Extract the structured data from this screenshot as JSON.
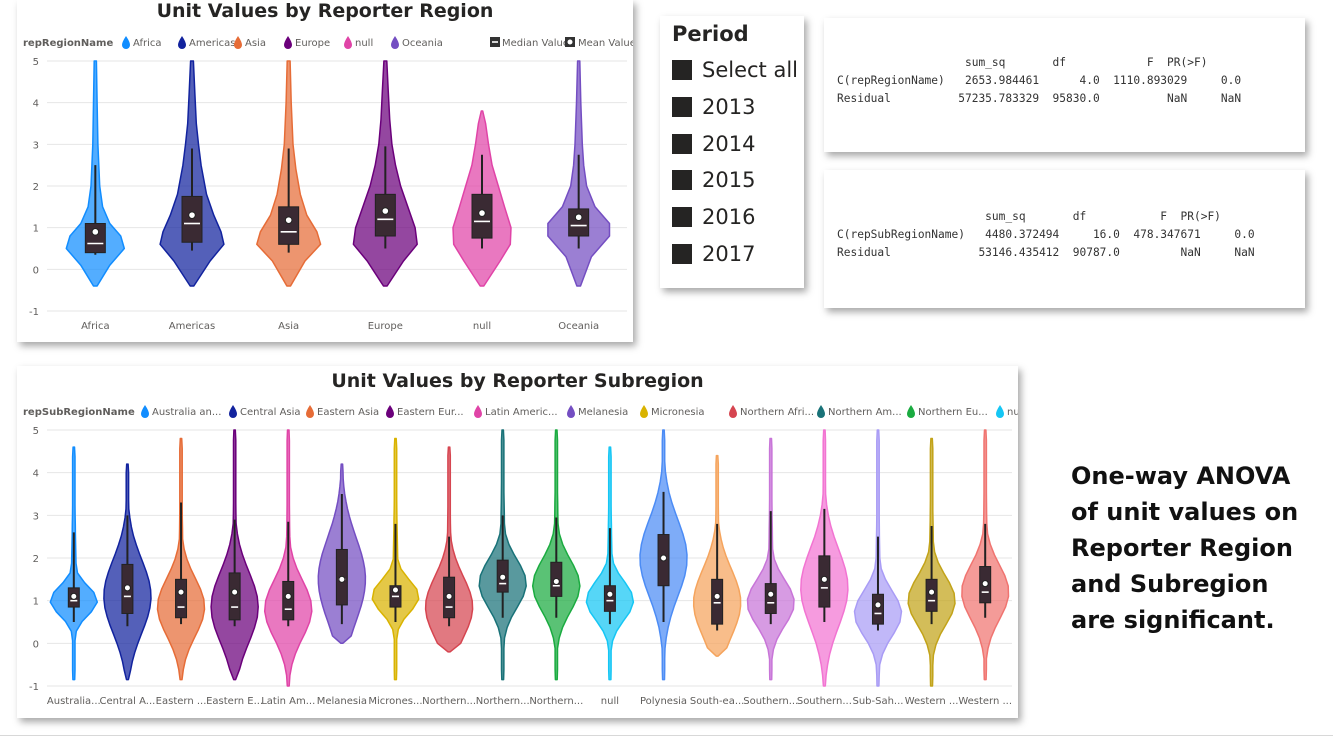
{
  "chart_data": [
    {
      "type": "violin",
      "title": "Unit Values by Reporter Region",
      "legend_title": "repRegionName",
      "legend_placement": "top-left",
      "legend_extra": [
        "Median Value",
        "Mean Value"
      ],
      "ylim": [
        -1,
        5
      ],
      "yticks": [
        -1,
        0,
        1,
        2,
        3,
        4,
        5
      ],
      "grid": true,
      "categories": [
        "Africa",
        "Americas",
        "Asia",
        "Europe",
        "null",
        "Oceania"
      ],
      "series": [
        {
          "name": "Africa",
          "color": "#118DFF",
          "min": -0.4,
          "q1": 0.4,
          "median": 0.62,
          "q3": 1.1,
          "mean": 0.9,
          "whisker_low": 0.35,
          "whisker_high": 2.5,
          "max": 5.0,
          "shape": [
            [
              -0.4,
              0.05
            ],
            [
              0.1,
              0.4
            ],
            [
              0.5,
              0.8
            ],
            [
              0.8,
              0.7
            ],
            [
              1.1,
              0.4
            ],
            [
              1.5,
              0.2
            ],
            [
              2.0,
              0.12
            ],
            [
              3.0,
              0.07
            ],
            [
              4.0,
              0.05
            ],
            [
              5.0,
              0.03
            ]
          ]
        },
        {
          "name": "Americas",
          "color": "#12239E",
          "min": -0.4,
          "q1": 0.65,
          "median": 1.1,
          "q3": 1.75,
          "mean": 1.3,
          "whisker_low": 0.45,
          "whisker_high": 2.9,
          "max": 5.0,
          "shape": [
            [
              -0.4,
              0.05
            ],
            [
              0.2,
              0.5
            ],
            [
              0.6,
              0.88
            ],
            [
              0.9,
              0.8
            ],
            [
              1.3,
              0.6
            ],
            [
              1.8,
              0.4
            ],
            [
              2.5,
              0.25
            ],
            [
              3.0,
              0.18
            ],
            [
              3.5,
              0.12
            ],
            [
              4.2,
              0.08
            ],
            [
              5.0,
              0.04
            ]
          ]
        },
        {
          "name": "Asia",
          "color": "#E66C37",
          "min": -0.4,
          "q1": 0.6,
          "median": 0.9,
          "q3": 1.5,
          "mean": 1.18,
          "whisker_low": 0.4,
          "whisker_high": 2.9,
          "max": 5.0,
          "shape": [
            [
              -0.4,
              0.05
            ],
            [
              0.2,
              0.45
            ],
            [
              0.6,
              0.88
            ],
            [
              0.9,
              0.78
            ],
            [
              1.3,
              0.5
            ],
            [
              1.8,
              0.32
            ],
            [
              2.4,
              0.2
            ],
            [
              3.0,
              0.12
            ],
            [
              4.0,
              0.07
            ],
            [
              5.0,
              0.04
            ]
          ]
        },
        {
          "name": "Europe",
          "color": "#6B007B",
          "min": -0.4,
          "q1": 0.8,
          "median": 1.2,
          "q3": 1.8,
          "mean": 1.4,
          "whisker_low": 0.5,
          "whisker_high": 2.95,
          "max": 5.0,
          "shape": [
            [
              -0.4,
              0.05
            ],
            [
              0.2,
              0.5
            ],
            [
              0.6,
              0.88
            ],
            [
              1.0,
              0.82
            ],
            [
              1.5,
              0.62
            ],
            [
              2.0,
              0.42
            ],
            [
              2.5,
              0.28
            ],
            [
              3.0,
              0.18
            ],
            [
              3.6,
              0.12
            ],
            [
              4.3,
              0.08
            ],
            [
              5.0,
              0.04
            ]
          ]
        },
        {
          "name": "null",
          "color": "#E044A7",
          "min": -0.4,
          "q1": 0.75,
          "median": 1.15,
          "q3": 1.8,
          "mean": 1.35,
          "whisker_low": 0.5,
          "whisker_high": 2.75,
          "max": 3.8,
          "shape": [
            [
              -0.4,
              0.05
            ],
            [
              0.2,
              0.5
            ],
            [
              0.6,
              0.78
            ],
            [
              1.0,
              0.8
            ],
            [
              1.5,
              0.62
            ],
            [
              2.0,
              0.45
            ],
            [
              2.5,
              0.28
            ],
            [
              3.0,
              0.18
            ],
            [
              3.5,
              0.1
            ],
            [
              3.8,
              0.02
            ]
          ]
        },
        {
          "name": "Oceania",
          "color": "#744EC2",
          "min": -0.4,
          "q1": 0.8,
          "median": 1.05,
          "q3": 1.45,
          "mean": 1.25,
          "whisker_low": 0.5,
          "whisker_high": 2.75,
          "max": 5.0,
          "shape": [
            [
              -0.4,
              0.05
            ],
            [
              0.3,
              0.35
            ],
            [
              0.8,
              0.85
            ],
            [
              1.1,
              0.85
            ],
            [
              1.5,
              0.45
            ],
            [
              2.0,
              0.22
            ],
            [
              2.5,
              0.14
            ],
            [
              3.0,
              0.1
            ],
            [
              4.0,
              0.06
            ],
            [
              5.0,
              0.03
            ]
          ]
        }
      ]
    },
    {
      "type": "violin",
      "title": "Unit Values by Reporter Subregion",
      "legend_title": "repSubRegionName",
      "legend_placement": "top-left",
      "ylim": [
        -1,
        5
      ],
      "yticks": [
        -1,
        0,
        1,
        2,
        3,
        4,
        5
      ],
      "grid": true,
      "legend_labels": [
        "Australia an...",
        "Central Asia",
        "Eastern Asia",
        "Eastern Eur...",
        "Latin Americ...",
        "Melanesia",
        "Micronesia",
        "Northern Afri...",
        "Northern Am...",
        "Northern Eu...",
        "null"
      ],
      "categories": [
        "Australia...",
        "Central A...",
        "Eastern ...",
        "Eastern E...",
        "Latin Am...",
        "Melanesia",
        "Micrones...",
        "Northern...",
        "Northern...",
        "Northern...",
        "null",
        "Polynesia",
        "South-ea...",
        "Southern...",
        "Southern...",
        "Sub-Sah...",
        "Western ...",
        "Western ..."
      ],
      "series": [
        {
          "color": "#118DFF",
          "min": -0.85,
          "max": 4.6,
          "q1": 0.85,
          "median": 1.0,
          "q3": 1.3,
          "mean": 1.1,
          "whisker_low": 0.5,
          "whisker_high": 2.6
        },
        {
          "color": "#12239E",
          "min": -0.85,
          "max": 4.2,
          "q1": 0.7,
          "median": 1.1,
          "q3": 1.85,
          "mean": 1.3,
          "whisker_low": 0.4,
          "whisker_high": 3.0
        },
        {
          "color": "#E66C37",
          "min": -0.85,
          "max": 4.8,
          "q1": 0.6,
          "median": 0.85,
          "q3": 1.5,
          "mean": 1.2,
          "whisker_low": 0.45,
          "whisker_high": 3.3
        },
        {
          "color": "#6B007B",
          "min": -0.85,
          "max": 5.0,
          "q1": 0.55,
          "median": 0.85,
          "q3": 1.65,
          "mean": 1.2,
          "whisker_low": 0.4,
          "whisker_high": 2.9
        },
        {
          "color": "#E044A7",
          "min": -1.0,
          "max": 5.0,
          "q1": 0.55,
          "median": 0.8,
          "q3": 1.45,
          "mean": 1.1,
          "whisker_low": 0.4,
          "whisker_high": 2.85
        },
        {
          "color": "#744EC2",
          "min": 0.0,
          "max": 4.2,
          "q1": 0.9,
          "median": 1.5,
          "q3": 2.2,
          "mean": 1.5,
          "whisker_low": 0.45,
          "whisker_high": 3.5
        },
        {
          "color": "#D9B300",
          "min": -0.85,
          "max": 4.8,
          "q1": 0.85,
          "median": 1.1,
          "q3": 1.35,
          "mean": 1.25,
          "whisker_low": 0.5,
          "whisker_high": 2.8
        },
        {
          "color": "#D64550",
          "min": -0.2,
          "max": 4.6,
          "q1": 0.6,
          "median": 0.85,
          "q3": 1.55,
          "mean": 1.1,
          "whisker_low": 0.4,
          "whisker_high": 2.5
        },
        {
          "color": "#197278",
          "min": -0.85,
          "max": 5.0,
          "q1": 1.2,
          "median": 1.4,
          "q3": 1.95,
          "mean": 1.55,
          "whisker_low": 0.6,
          "whisker_high": 3.0
        },
        {
          "color": "#1AAB40",
          "min": -0.85,
          "max": 5.0,
          "q1": 1.1,
          "median": 1.35,
          "q3": 1.9,
          "mean": 1.45,
          "whisker_low": 0.6,
          "whisker_high": 2.95
        },
        {
          "color": "#15C6F4",
          "min": -0.85,
          "max": 4.6,
          "q1": 0.75,
          "median": 1.0,
          "q3": 1.35,
          "mean": 1.15,
          "whisker_low": 0.45,
          "whisker_high": 2.7
        },
        {
          "color": "#4C8CF5",
          "min": -0.85,
          "max": 5.0,
          "q1": 1.35,
          "median": 2.0,
          "q3": 2.55,
          "mean": 2.0,
          "whisker_low": 0.5,
          "whisker_high": 3.55
        },
        {
          "color": "#F5A45D",
          "min": -0.3,
          "max": 4.4,
          "q1": 0.45,
          "median": 0.95,
          "q3": 1.5,
          "mean": 1.1,
          "whisker_low": 0.3,
          "whisker_high": 2.8
        },
        {
          "color": "#C875D8",
          "min": -0.85,
          "max": 4.8,
          "q1": 0.7,
          "median": 0.95,
          "q3": 1.4,
          "mean": 1.15,
          "whisker_low": 0.45,
          "whisker_high": 3.1
        },
        {
          "color": "#F274D2",
          "min": -1.0,
          "max": 5.0,
          "q1": 0.85,
          "median": 1.3,
          "q3": 2.05,
          "mean": 1.5,
          "whisker_low": 0.5,
          "whisker_high": 3.15
        },
        {
          "color": "#A99CF5",
          "min": -1.0,
          "max": 5.0,
          "q1": 0.45,
          "median": 0.7,
          "q3": 1.15,
          "mean": 0.9,
          "whisker_low": 0.3,
          "whisker_high": 2.5
        },
        {
          "color": "#C2A319",
          "min": -1.0,
          "max": 4.8,
          "q1": 0.75,
          "median": 1.0,
          "q3": 1.5,
          "mean": 1.2,
          "whisker_low": 0.45,
          "whisker_high": 2.75
        },
        {
          "color": "#F07470",
          "min": -0.85,
          "max": 5.0,
          "q1": 0.95,
          "median": 1.2,
          "q3": 1.8,
          "mean": 1.4,
          "whisker_low": 0.6,
          "whisker_high": 2.8
        }
      ]
    }
  ],
  "period_slicer": {
    "title": "Period",
    "items": [
      "Select all",
      "2013",
      "2014",
      "2015",
      "2016",
      "2017"
    ]
  },
  "anova_region": {
    "header": "                   sum_sq       df            F  PR(>F)",
    "rows": [
      "C(repRegionName)   2653.984461      4.0  1110.893029     0.0",
      "Residual          57235.783329  95830.0          NaN     NaN"
    ]
  },
  "anova_subregion": {
    "header": "                      sum_sq       df           F  PR(>F)",
    "rows": [
      "C(repSubRegionName)   4480.372494     16.0  478.347671     0.0",
      "Residual             53146.435412  90787.0         NaN     NaN"
    ]
  },
  "annotation": {
    "lines": [
      "One-way ANOVA",
      "of unit values on",
      "Reporter Region",
      "and Subregion",
      "are significant."
    ]
  }
}
